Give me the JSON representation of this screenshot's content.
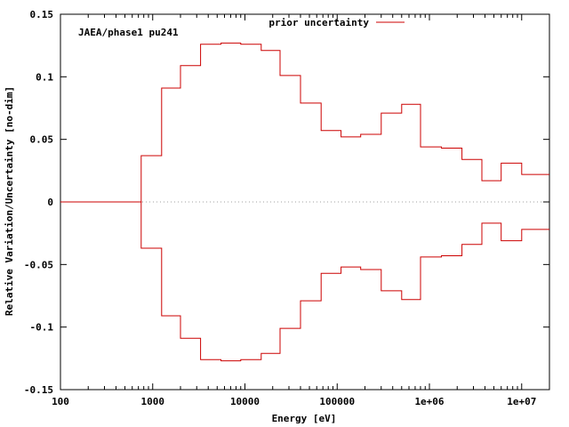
{
  "chart_data": {
    "type": "line",
    "step": true,
    "xlabel": "Energy [eV]",
    "ylabel": "Relative Variation/Uncertainty [no-dim]",
    "annotation": "JAEA/phase1 pu241",
    "xscale": "log",
    "xlim": [
      100,
      20000000
    ],
    "ylim": [
      -0.15,
      0.15
    ],
    "x_ticks": [
      {
        "value": 100,
        "label": "100"
      },
      {
        "value": 1000,
        "label": "1000"
      },
      {
        "value": 10000,
        "label": "10000"
      },
      {
        "value": 100000,
        "label": "100000"
      },
      {
        "value": 1000000,
        "label": "1e+06"
      },
      {
        "value": 10000000,
        "label": "1e+07"
      }
    ],
    "y_ticks": [
      {
        "value": 0.15,
        "label": "0.15"
      },
      {
        "value": 0.1,
        "label": "0.1"
      },
      {
        "value": 0.05,
        "label": "0.05"
      },
      {
        "value": 0,
        "label": "0"
      },
      {
        "value": -0.05,
        "label": "-0.05"
      },
      {
        "value": -0.1,
        "label": "-0.1"
      },
      {
        "value": -0.15,
        "label": "-0.15"
      }
    ],
    "grid": false,
    "zero_line": true,
    "legend_position": "top-right",
    "series": [
      {
        "name": "prior uncertainty",
        "color": "#cc0000",
        "bin_edges": [
          100,
          750,
          1250,
          2000,
          3300,
          5500,
          9000,
          15000,
          24000,
          40000,
          67000,
          110000,
          180000,
          300000,
          500000,
          800000,
          1350000,
          2250000,
          3700000,
          6000000,
          10000000,
          20000000
        ],
        "values": [
          0,
          0.037,
          0.091,
          0.109,
          0.126,
          0.127,
          0.126,
          0.121,
          0.101,
          0.079,
          0.057,
          0.052,
          0.054,
          0.071,
          0.078,
          0.044,
          0.043,
          0.034,
          0.017,
          0.031,
          0.022
        ],
        "mirrored": true
      }
    ]
  }
}
